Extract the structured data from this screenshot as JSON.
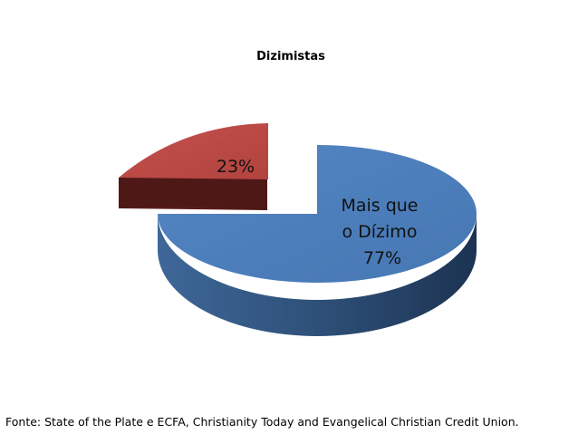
{
  "chart_data": {
    "type": "pie",
    "style": "3d-exploded",
    "title": "Dizimistas",
    "slices": [
      {
        "label_lines": [
          "Mais que",
          "o Dízimo",
          "77%"
        ],
        "value": 77,
        "color": "#4F81BD",
        "color_dark": "#2A4A70"
      },
      {
        "label_lines": [
          "23%"
        ],
        "value": 23,
        "color": "#C0504D",
        "color_dark": "#5E1F1E"
      }
    ]
  },
  "footer": {
    "source": "Fonte: State of the Plate e ECFA, Christianity Today and Evangelical Christian Credit Union."
  }
}
